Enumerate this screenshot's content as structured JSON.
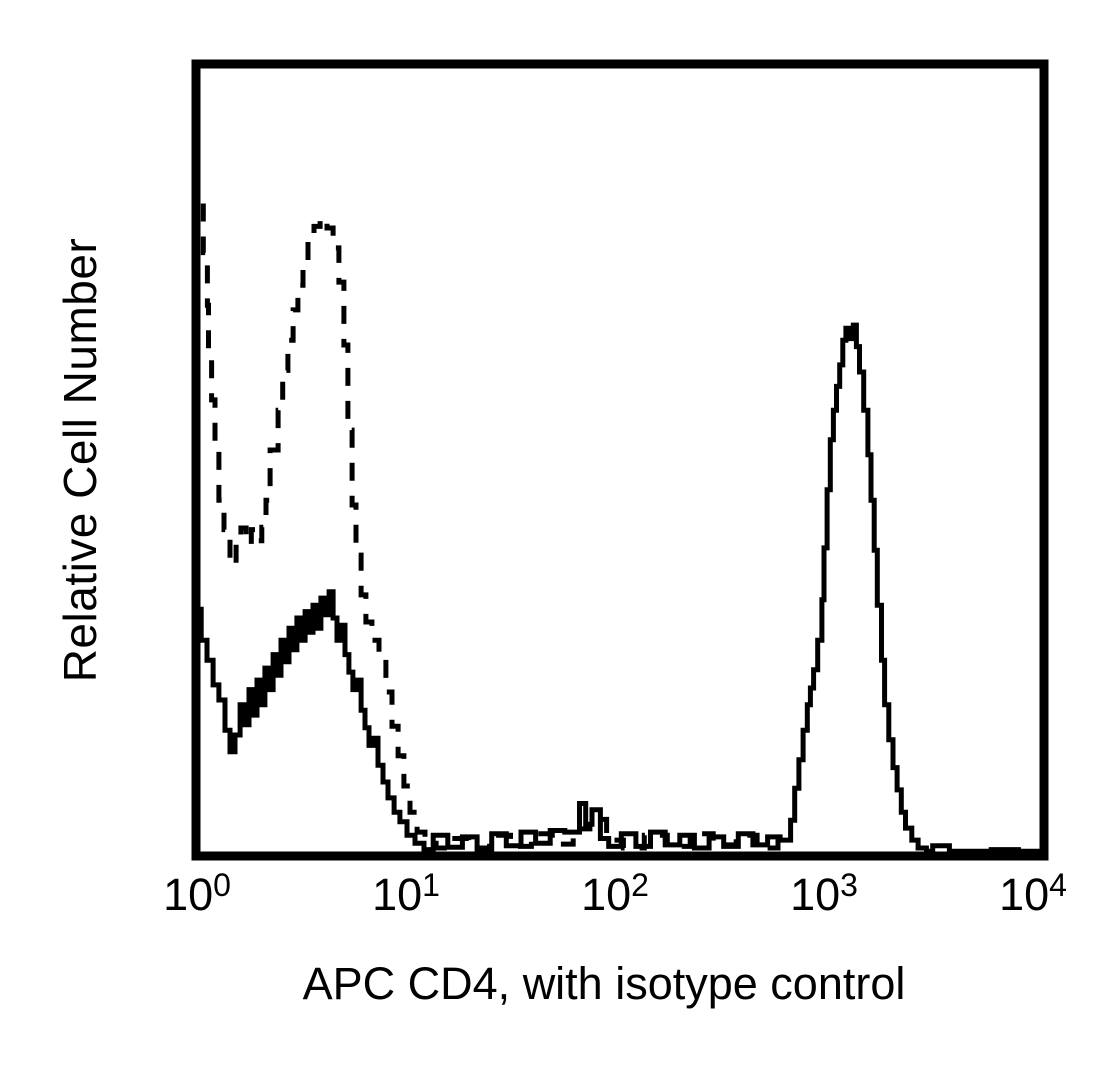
{
  "figure": {
    "background_color": "#ffffff",
    "ink_color": "#000000"
  },
  "chart_data": {
    "type": "line",
    "subtype": "flow-cytometry-histogram-overlay",
    "title": "",
    "xlabel": "APC CD4, with isotype control",
    "ylabel": "Relative Cell Number",
    "x_scale": "log10",
    "x_range_decades": [
      0,
      4
    ],
    "x_ticks": [
      {
        "base": "10",
        "exp": "0"
      },
      {
        "base": "10",
        "exp": "1"
      },
      {
        "base": "10",
        "exp": "2"
      },
      {
        "base": "10",
        "exp": "3"
      },
      {
        "base": "10",
        "exp": "4"
      }
    ],
    "y_axis_ticks": "none",
    "grid": false,
    "legend": "none",
    "line_color": "#000000",
    "series": [
      {
        "name": "isotype control",
        "line_style": "dashed",
        "dash": "18 15",
        "points": [
          [
            0.005,
            0.896
          ],
          [
            0.03,
            0.824
          ],
          [
            0.05,
            0.758
          ],
          [
            0.055,
            0.692
          ],
          [
            0.07,
            0.636
          ],
          [
            0.086,
            0.573
          ],
          [
            0.105,
            0.51
          ],
          [
            0.129,
            0.447
          ],
          [
            0.158,
            0.41
          ],
          [
            0.187,
            0.366
          ],
          [
            0.21,
            0.395
          ],
          [
            0.235,
            0.412
          ],
          [
            0.26,
            0.392
          ],
          [
            0.285,
            0.41
          ],
          [
            0.31,
            0.396
          ],
          [
            0.33,
            0.413
          ],
          [
            0.35,
            0.447
          ],
          [
            0.388,
            0.51
          ],
          [
            0.41,
            0.56
          ],
          [
            0.435,
            0.61
          ],
          [
            0.46,
            0.648
          ],
          [
            0.483,
            0.686
          ],
          [
            0.507,
            0.717
          ],
          [
            0.531,
            0.739
          ],
          [
            0.56,
            0.774
          ],
          [
            0.589,
            0.791
          ],
          [
            0.622,
            0.801
          ],
          [
            0.651,
            0.789
          ],
          [
            0.679,
            0.764
          ],
          [
            0.703,
            0.721
          ],
          [
            0.722,
            0.642
          ],
          [
            0.742,
            0.535
          ],
          [
            0.761,
            0.441
          ],
          [
            0.785,
            0.378
          ],
          [
            0.808,
            0.328
          ],
          [
            0.837,
            0.294
          ],
          [
            0.871,
            0.271
          ],
          [
            0.904,
            0.249
          ],
          [
            0.933,
            0.206
          ],
          [
            0.962,
            0.163
          ],
          [
            0.99,
            0.126
          ],
          [
            1.019,
            0.088
          ],
          [
            1.053,
            0.055
          ],
          [
            1.091,
            0.03
          ],
          [
            1.144,
            0.016
          ],
          [
            1.211,
            0.01
          ],
          [
            1.3,
            0.022
          ],
          [
            1.4,
            0.01
          ],
          [
            1.5,
            0.026
          ],
          [
            1.6,
            0.012
          ],
          [
            1.7,
            0.028
          ],
          [
            1.8,
            0.015
          ],
          [
            1.88,
            0.034
          ],
          [
            1.96,
            0.046
          ],
          [
            2.04,
            0.02
          ],
          [
            2.14,
            0.01
          ],
          [
            2.25,
            0.026
          ],
          [
            2.36,
            0.012
          ],
          [
            2.47,
            0.028
          ],
          [
            2.58,
            0.014
          ],
          [
            2.68,
            0.026
          ],
          [
            2.78,
            0.01
          ],
          [
            2.85,
            0.018
          ]
        ]
      },
      {
        "name": "APC CD4",
        "line_style": "solid",
        "dash": null,
        "points": [
          [
            0.0,
            0.33
          ],
          [
            0.02,
            0.31
          ],
          [
            0.048,
            0.271
          ],
          [
            0.077,
            0.246
          ],
          [
            0.105,
            0.215
          ],
          [
            0.134,
            0.196
          ],
          [
            0.158,
            0.158
          ],
          [
            0.182,
            0.131
          ],
          [
            0.206,
            0.152
          ],
          [
            0.23,
            0.19
          ],
          [
            0.249,
            0.165
          ],
          [
            0.268,
            0.209
          ],
          [
            0.287,
            0.177
          ],
          [
            0.306,
            0.221
          ],
          [
            0.325,
            0.19
          ],
          [
            0.344,
            0.236
          ],
          [
            0.364,
            0.209
          ],
          [
            0.383,
            0.253
          ],
          [
            0.402,
            0.227
          ],
          [
            0.421,
            0.271
          ],
          [
            0.44,
            0.244
          ],
          [
            0.459,
            0.286
          ],
          [
            0.478,
            0.259
          ],
          [
            0.498,
            0.299
          ],
          [
            0.517,
            0.271
          ],
          [
            0.536,
            0.307
          ],
          [
            0.555,
            0.281
          ],
          [
            0.574,
            0.315
          ],
          [
            0.593,
            0.286
          ],
          [
            0.612,
            0.324
          ],
          [
            0.632,
            0.303
          ],
          [
            0.651,
            0.332
          ],
          [
            0.67,
            0.299
          ],
          [
            0.689,
            0.271
          ],
          [
            0.708,
            0.29
          ],
          [
            0.727,
            0.253
          ],
          [
            0.746,
            0.231
          ],
          [
            0.766,
            0.209
          ],
          [
            0.785,
            0.221
          ],
          [
            0.804,
            0.183
          ],
          [
            0.823,
            0.161
          ],
          [
            0.842,
            0.139
          ],
          [
            0.866,
            0.148
          ],
          [
            0.89,
            0.114
          ],
          [
            0.914,
            0.093
          ],
          [
            0.943,
            0.073
          ],
          [
            0.971,
            0.055
          ],
          [
            1.005,
            0.043
          ],
          [
            1.043,
            0.026
          ],
          [
            1.086,
            0.016
          ],
          [
            1.13,
            0.008
          ],
          [
            1.2,
            0.026
          ],
          [
            1.27,
            0.011
          ],
          [
            1.34,
            0.024
          ],
          [
            1.41,
            0.008
          ],
          [
            1.48,
            0.028
          ],
          [
            1.55,
            0.013
          ],
          [
            1.62,
            0.03
          ],
          [
            1.69,
            0.016
          ],
          [
            1.76,
            0.032
          ],
          [
            1.83,
            0.03
          ],
          [
            1.86,
            0.066
          ],
          [
            1.89,
            0.04
          ],
          [
            1.93,
            0.058
          ],
          [
            1.97,
            0.022
          ],
          [
            2.03,
            0.012
          ],
          [
            2.1,
            0.028
          ],
          [
            2.17,
            0.012
          ],
          [
            2.24,
            0.03
          ],
          [
            2.31,
            0.014
          ],
          [
            2.38,
            0.026
          ],
          [
            2.45,
            0.01
          ],
          [
            2.52,
            0.024
          ],
          [
            2.59,
            0.012
          ],
          [
            2.66,
            0.028
          ],
          [
            2.73,
            0.014
          ],
          [
            2.79,
            0.024
          ],
          [
            2.84,
            0.02
          ],
          [
            2.86,
            0.045
          ],
          [
            2.88,
            0.085
          ],
          [
            2.9,
            0.121
          ],
          [
            2.92,
            0.158
          ],
          [
            2.935,
            0.19
          ],
          [
            2.95,
            0.211
          ],
          [
            2.97,
            0.234
          ],
          [
            2.99,
            0.271
          ],
          [
            3.0,
            0.322
          ],
          [
            3.015,
            0.387
          ],
          [
            3.03,
            0.46
          ],
          [
            3.045,
            0.523
          ],
          [
            3.06,
            0.56
          ],
          [
            3.075,
            0.59
          ],
          [
            3.09,
            0.617
          ],
          [
            3.105,
            0.648
          ],
          [
            3.12,
            0.663
          ],
          [
            3.14,
            0.65
          ],
          [
            3.155,
            0.667
          ],
          [
            3.17,
            0.64
          ],
          [
            3.19,
            0.608
          ],
          [
            3.21,
            0.56
          ],
          [
            3.225,
            0.504
          ],
          [
            3.24,
            0.447
          ],
          [
            3.255,
            0.384
          ],
          [
            3.275,
            0.315
          ],
          [
            3.29,
            0.246
          ],
          [
            3.31,
            0.19
          ],
          [
            3.33,
            0.146
          ],
          [
            3.35,
            0.111
          ],
          [
            3.37,
            0.083
          ],
          [
            3.39,
            0.055
          ],
          [
            3.42,
            0.035
          ],
          [
            3.45,
            0.02
          ],
          [
            3.49,
            0.01
          ],
          [
            3.52,
            0.006
          ],
          [
            3.6,
            0.013
          ],
          [
            3.64,
            0.006
          ],
          [
            3.8,
            0.006
          ],
          [
            3.93,
            0.008
          ],
          [
            4.05,
            0.006
          ]
        ]
      }
    ]
  }
}
